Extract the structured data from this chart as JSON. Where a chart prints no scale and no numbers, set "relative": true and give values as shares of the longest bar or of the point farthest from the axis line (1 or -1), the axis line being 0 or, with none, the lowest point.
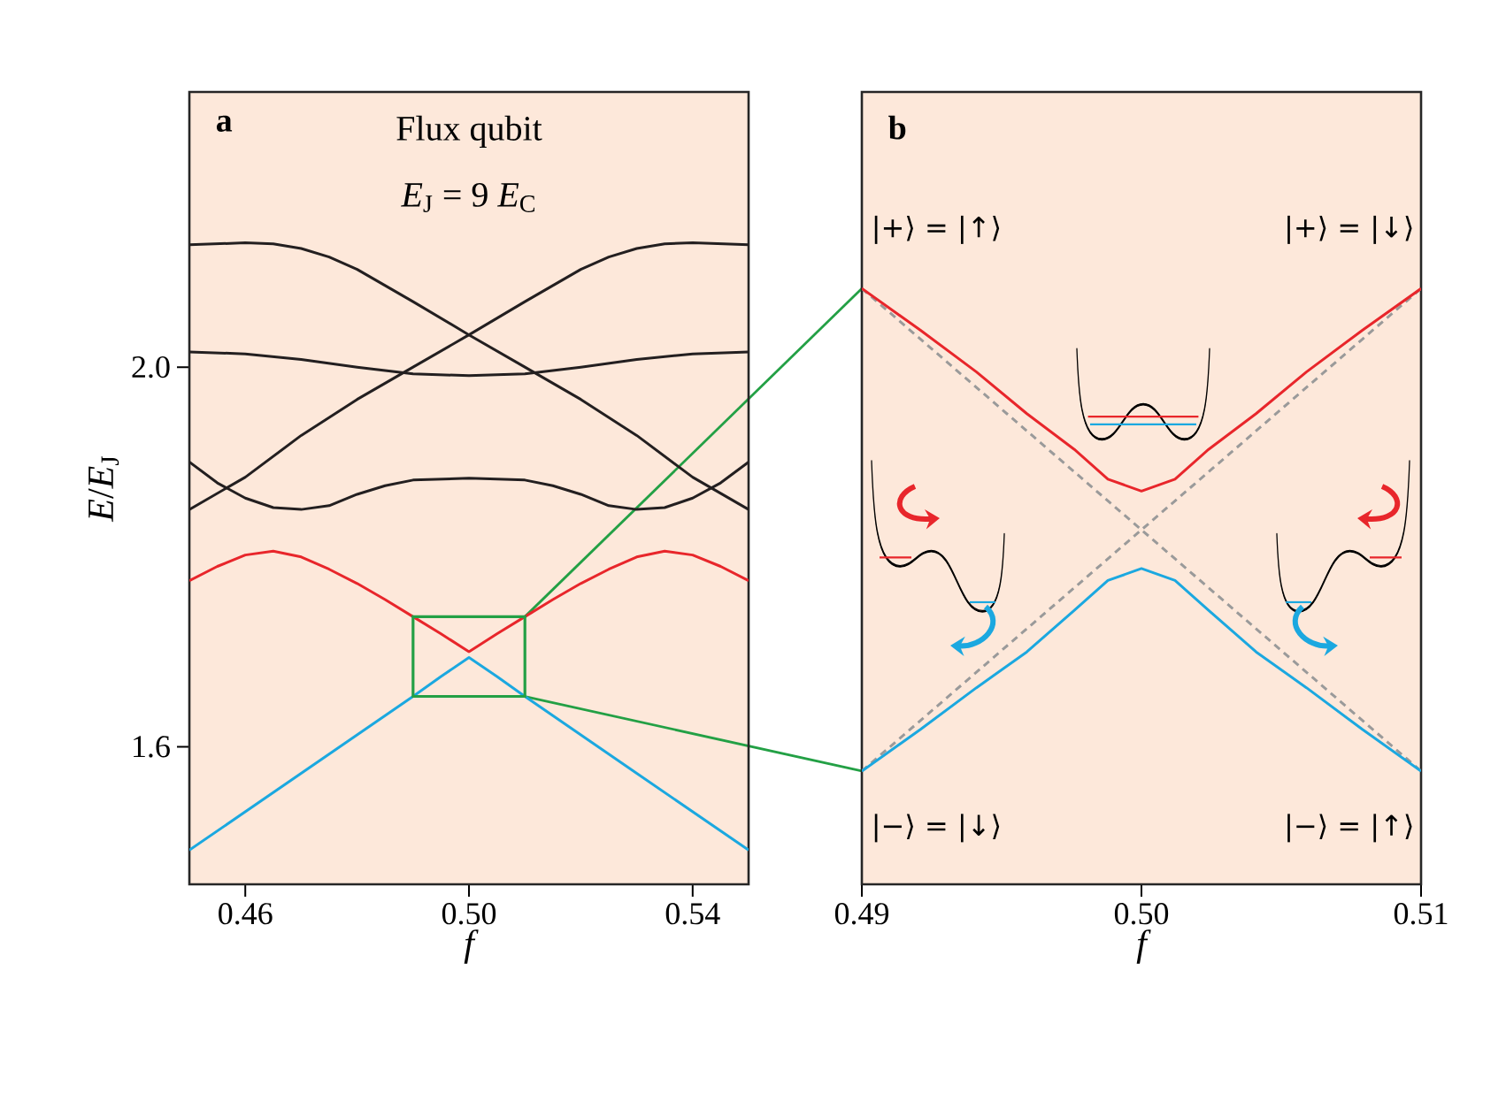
{
  "chart_data": [
    {
      "type": "line",
      "annotations": [
        "a",
        "Flux qubit",
        "*E*$_{J}$ = 9 *E*$_{C}$"
      ],
      "xlabel": "f",
      "ylabel": "*E*/*E*$_{J}$",
      "xlim": [
        0.45,
        0.55
      ],
      "ylim": [
        1.455,
        2.29
      ],
      "xticks": [
        0.46,
        {
          "value": 0.5,
          "label": "0.50"
        },
        0.54
      ],
      "yticks": [
        1.6,
        {
          "value": 2.0,
          "label": "2.0"
        }
      ],
      "series": [
        {
          "color": "#e8262b",
          "x": [
            0.45,
            0.455,
            0.46,
            0.465,
            0.47,
            0.475,
            0.48,
            0.485,
            0.49,
            0.495,
            0.5,
            0.505,
            0.51,
            0.515,
            0.52,
            0.525,
            0.53,
            0.535,
            0.54,
            0.545,
            0.55
          ],
          "values": [
            1.775,
            1.79,
            1.802,
            1.806,
            1.8,
            1.787,
            1.772,
            1.755,
            1.737,
            1.719,
            1.7,
            1.719,
            1.737,
            1.755,
            1.772,
            1.787,
            1.8,
            1.806,
            1.802,
            1.79,
            1.775
          ]
        },
        {
          "color": "#1ba8e0",
          "x": [
            0.45,
            0.47,
            0.49,
            0.495,
            0.5,
            0.505,
            0.51,
            0.53,
            0.55
          ],
          "values": [
            1.491,
            1.572,
            1.653,
            1.674,
            1.694,
            1.674,
            1.653,
            1.572,
            1.491
          ]
        },
        {
          "color": "#231f20",
          "x": [
            0.45,
            0.46,
            0.465,
            0.47,
            0.475,
            0.48,
            0.49,
            0.5,
            0.51,
            0.52,
            0.53,
            0.54,
            0.55
          ],
          "values": [
            2.129,
            2.131,
            2.13,
            2.125,
            2.116,
            2.103,
            2.069,
            2.034,
            2.0,
            1.966,
            1.928,
            1.884,
            1.85
          ]
        },
        {
          "color": "#231f20",
          "x": [
            0.45,
            0.46,
            0.47,
            0.48,
            0.49,
            0.5,
            0.51,
            0.52,
            0.525,
            0.53,
            0.535,
            0.54,
            0.55
          ],
          "values": [
            1.85,
            1.884,
            1.928,
            1.966,
            2.0,
            2.034,
            2.069,
            2.103,
            2.116,
            2.125,
            2.13,
            2.131,
            2.129
          ]
        },
        {
          "color": "#231f20",
          "x": [
            0.45,
            0.46,
            0.47,
            0.48,
            0.49,
            0.5,
            0.51,
            0.52,
            0.53,
            0.54,
            0.55
          ],
          "values": [
            2.016,
            2.014,
            2.008,
            2.0,
            1.993,
            1.991,
            1.993,
            2.0,
            2.008,
            2.014,
            2.016
          ]
        },
        {
          "color": "#231f20",
          "x": [
            0.45,
            0.455,
            0.46,
            0.465,
            0.47,
            0.475,
            0.48,
            0.485,
            0.49,
            0.5,
            0.51,
            0.515,
            0.52,
            0.525,
            0.53,
            0.535,
            0.54,
            0.545,
            0.55
          ],
          "values": [
            1.9,
            1.878,
            1.862,
            1.852,
            1.85,
            1.854,
            1.866,
            1.875,
            1.881,
            1.883,
            1.881,
            1.875,
            1.866,
            1.854,
            1.85,
            1.852,
            1.862,
            1.878,
            1.9
          ]
        }
      ]
    },
    {
      "type": "line",
      "relative": true,
      "annotations": [
        "b",
        "|+⟩ = |↑⟩",
        "|+⟩ = |↓⟩",
        "|−⟩ = |↓⟩",
        "|−⟩ = |↑⟩"
      ],
      "xlabel": "f",
      "xlim": [
        0.49,
        0.51
      ],
      "xticks": [
        0.49,
        {
          "value": 0.5,
          "label": "0.50"
        },
        0.51
      ],
      "series": [
        {
          "color": "#9a9a9a",
          "line_style": "dashed",
          "x": [
            0.49,
            0.51
          ],
          "values": [
            1,
            0.19
          ]
        },
        {
          "color": "#9a9a9a",
          "line_style": "dashed",
          "x": [
            0.49,
            0.51
          ],
          "values": [
            0.19,
            1
          ]
        },
        {
          "color": "#e8262b",
          "x": [
            0.49,
            0.4921,
            0.4941,
            0.4959,
            0.4976,
            0.4988,
            0.5,
            0.5012,
            0.5024,
            0.5041,
            0.5059,
            0.5079,
            0.51
          ],
          "values": [
            1,
            0.93,
            0.86,
            0.79,
            0.73,
            0.68,
            0.66,
            0.68,
            0.73,
            0.79,
            0.86,
            0.93,
            1
          ]
        },
        {
          "color": "#1ba8e0",
          "x": [
            0.49,
            0.4921,
            0.4941,
            0.4959,
            0.4976,
            0.4988,
            0.5,
            0.5012,
            0.5024,
            0.5041,
            0.5059,
            0.5079,
            0.51
          ],
          "values": [
            0.19,
            0.26,
            0.33,
            0.39,
            0.46,
            0.51,
            0.53,
            0.51,
            0.46,
            0.39,
            0.33,
            0.26,
            0.19
          ]
        }
      ]
    }
  ]
}
